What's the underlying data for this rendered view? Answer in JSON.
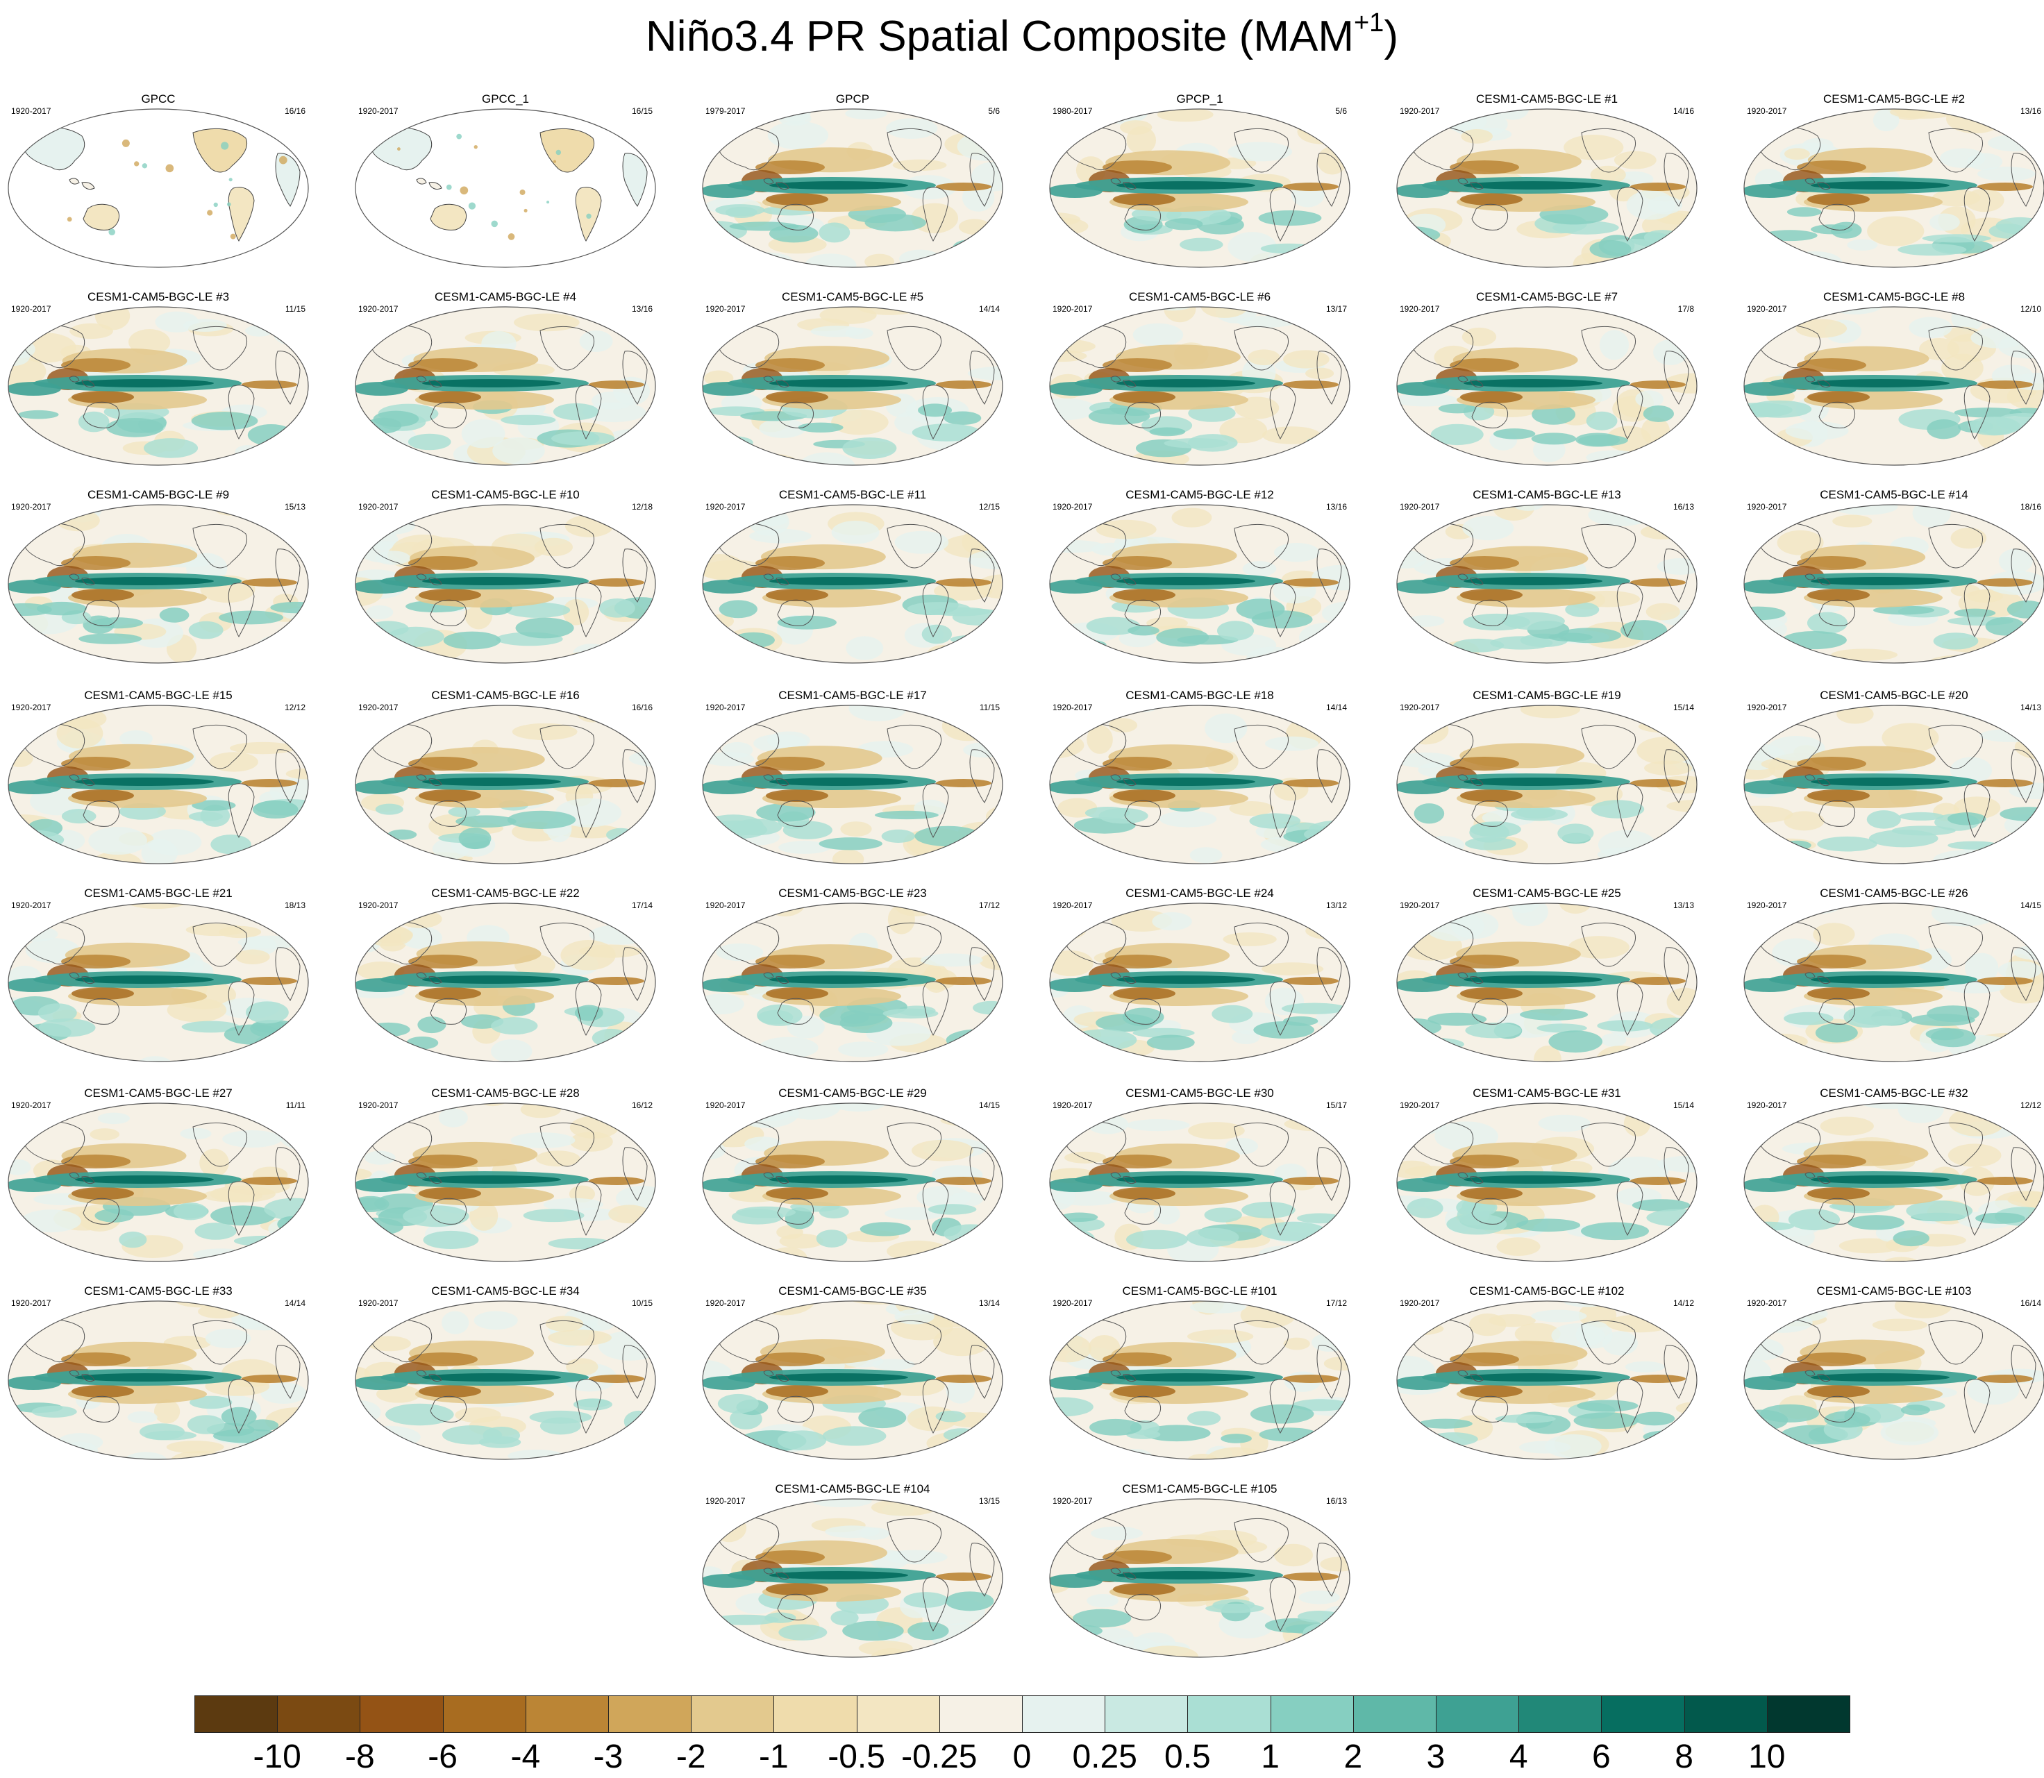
{
  "chart_data": {
    "type": "heatmap",
    "title": "Niño3.4 PR Spatial Composite (MAM",
    "title_superscript": "+1",
    "title_suffix": ")",
    "projection": "robinson (global, Pacific-centered)",
    "colorbar": {
      "labels": [
        "-10",
        "-8",
        "-6",
        "-4",
        "-3",
        "-2",
        "-1",
        "-0.5",
        "-0.25",
        "0",
        "0.25",
        "0.5",
        "1",
        "2",
        "3",
        "4",
        "6",
        "8",
        "10"
      ],
      "colors": [
        "#5c3a10",
        "#7b4a12",
        "#945315",
        "#a86c20",
        "#bb8535",
        "#d0a65a",
        "#e3c98e",
        "#efdcac",
        "#f3e6c2",
        "#f6f1e6",
        "#e6f2ef",
        "#c9e9e2",
        "#aadfd4",
        "#86cfc1",
        "#5fb8a8",
        "#3ea193",
        "#218878",
        "#066e60",
        "#02594c",
        "#01382f"
      ]
    },
    "panels": [
      {
        "title": "GPCC",
        "years": "1920-2017",
        "count": "16/16",
        "type": "landonly"
      },
      {
        "title": "GPCC_1",
        "years": "1920-2017",
        "count": "16/15",
        "type": "landonly"
      },
      {
        "title": "GPCP",
        "years": "1979-2017",
        "count": "5/6",
        "type": "full"
      },
      {
        "title": "GPCP_1",
        "years": "1980-2017",
        "count": "5/6",
        "type": "full"
      },
      {
        "title": "CESM1-CAM5-BGC-LE #1",
        "years": "1920-2017",
        "count": "14/16",
        "type": "full"
      },
      {
        "title": "CESM1-CAM5-BGC-LE #2",
        "years": "1920-2017",
        "count": "13/16",
        "type": "full"
      },
      {
        "title": "CESM1-CAM5-BGC-LE #3",
        "years": "1920-2017",
        "count": "11/15",
        "type": "full"
      },
      {
        "title": "CESM1-CAM5-BGC-LE #4",
        "years": "1920-2017",
        "count": "13/16",
        "type": "full"
      },
      {
        "title": "CESM1-CAM5-BGC-LE #5",
        "years": "1920-2017",
        "count": "14/14",
        "type": "full"
      },
      {
        "title": "CESM1-CAM5-BGC-LE #6",
        "years": "1920-2017",
        "count": "13/17",
        "type": "full"
      },
      {
        "title": "CESM1-CAM5-BGC-LE #7",
        "years": "1920-2017",
        "count": "17/8",
        "type": "full"
      },
      {
        "title": "CESM1-CAM5-BGC-LE #8",
        "years": "1920-2017",
        "count": "12/10",
        "type": "full"
      },
      {
        "title": "CESM1-CAM5-BGC-LE #9",
        "years": "1920-2017",
        "count": "15/13",
        "type": "full"
      },
      {
        "title": "CESM1-CAM5-BGC-LE #10",
        "years": "1920-2017",
        "count": "12/18",
        "type": "full"
      },
      {
        "title": "CESM1-CAM5-BGC-LE #11",
        "years": "1920-2017",
        "count": "12/15",
        "type": "full"
      },
      {
        "title": "CESM1-CAM5-BGC-LE #12",
        "years": "1920-2017",
        "count": "13/16",
        "type": "full"
      },
      {
        "title": "CESM1-CAM5-BGC-LE #13",
        "years": "1920-2017",
        "count": "16/13",
        "type": "full"
      },
      {
        "title": "CESM1-CAM5-BGC-LE #14",
        "years": "1920-2017",
        "count": "18/16",
        "type": "full"
      },
      {
        "title": "CESM1-CAM5-BGC-LE #15",
        "years": "1920-2017",
        "count": "12/12",
        "type": "full"
      },
      {
        "title": "CESM1-CAM5-BGC-LE #16",
        "years": "1920-2017",
        "count": "16/16",
        "type": "full"
      },
      {
        "title": "CESM1-CAM5-BGC-LE #17",
        "years": "1920-2017",
        "count": "11/15",
        "type": "full"
      },
      {
        "title": "CESM1-CAM5-BGC-LE #18",
        "years": "1920-2017",
        "count": "14/14",
        "type": "full"
      },
      {
        "title": "CESM1-CAM5-BGC-LE #19",
        "years": "1920-2017",
        "count": "15/14",
        "type": "full"
      },
      {
        "title": "CESM1-CAM5-BGC-LE #20",
        "years": "1920-2017",
        "count": "14/13",
        "type": "full"
      },
      {
        "title": "CESM1-CAM5-BGC-LE #21",
        "years": "1920-2017",
        "count": "18/13",
        "type": "full"
      },
      {
        "title": "CESM1-CAM5-BGC-LE #22",
        "years": "1920-2017",
        "count": "17/14",
        "type": "full"
      },
      {
        "title": "CESM1-CAM5-BGC-LE #23",
        "years": "1920-2017",
        "count": "17/12",
        "type": "full"
      },
      {
        "title": "CESM1-CAM5-BGC-LE #24",
        "years": "1920-2017",
        "count": "13/12",
        "type": "full"
      },
      {
        "title": "CESM1-CAM5-BGC-LE #25",
        "years": "1920-2017",
        "count": "13/13",
        "type": "full"
      },
      {
        "title": "CESM1-CAM5-BGC-LE #26",
        "years": "1920-2017",
        "count": "14/15",
        "type": "full"
      },
      {
        "title": "CESM1-CAM5-BGC-LE #27",
        "years": "1920-2017",
        "count": "11/11",
        "type": "full"
      },
      {
        "title": "CESM1-CAM5-BGC-LE #28",
        "years": "1920-2017",
        "count": "16/12",
        "type": "full"
      },
      {
        "title": "CESM1-CAM5-BGC-LE #29",
        "years": "1920-2017",
        "count": "14/15",
        "type": "full"
      },
      {
        "title": "CESM1-CAM5-BGC-LE #30",
        "years": "1920-2017",
        "count": "15/17",
        "type": "full"
      },
      {
        "title": "CESM1-CAM5-BGC-LE #31",
        "years": "1920-2017",
        "count": "15/14",
        "type": "full"
      },
      {
        "title": "CESM1-CAM5-BGC-LE #32",
        "years": "1920-2017",
        "count": "12/12",
        "type": "full"
      },
      {
        "title": "CESM1-CAM5-BGC-LE #33",
        "years": "1920-2017",
        "count": "14/14",
        "type": "full"
      },
      {
        "title": "CESM1-CAM5-BGC-LE #34",
        "years": "1920-2017",
        "count": "10/15",
        "type": "full"
      },
      {
        "title": "CESM1-CAM5-BGC-LE #35",
        "years": "1920-2017",
        "count": "13/14",
        "type": "full"
      },
      {
        "title": "CESM1-CAM5-BGC-LE #101",
        "years": "1920-2017",
        "count": "17/12",
        "type": "full"
      },
      {
        "title": "CESM1-CAM5-BGC-LE #102",
        "years": "1920-2017",
        "count": "14/12",
        "type": "full"
      },
      {
        "title": "CESM1-CAM5-BGC-LE #103",
        "years": "1920-2017",
        "count": "16/14",
        "type": "full"
      },
      {
        "title": "CESM1-CAM5-BGC-LE #104",
        "years": "1920-2017",
        "count": "13/15",
        "type": "full"
      },
      {
        "title": "CESM1-CAM5-BGC-LE #105",
        "years": "1920-2017",
        "count": "16/13",
        "type": "full"
      }
    ]
  }
}
